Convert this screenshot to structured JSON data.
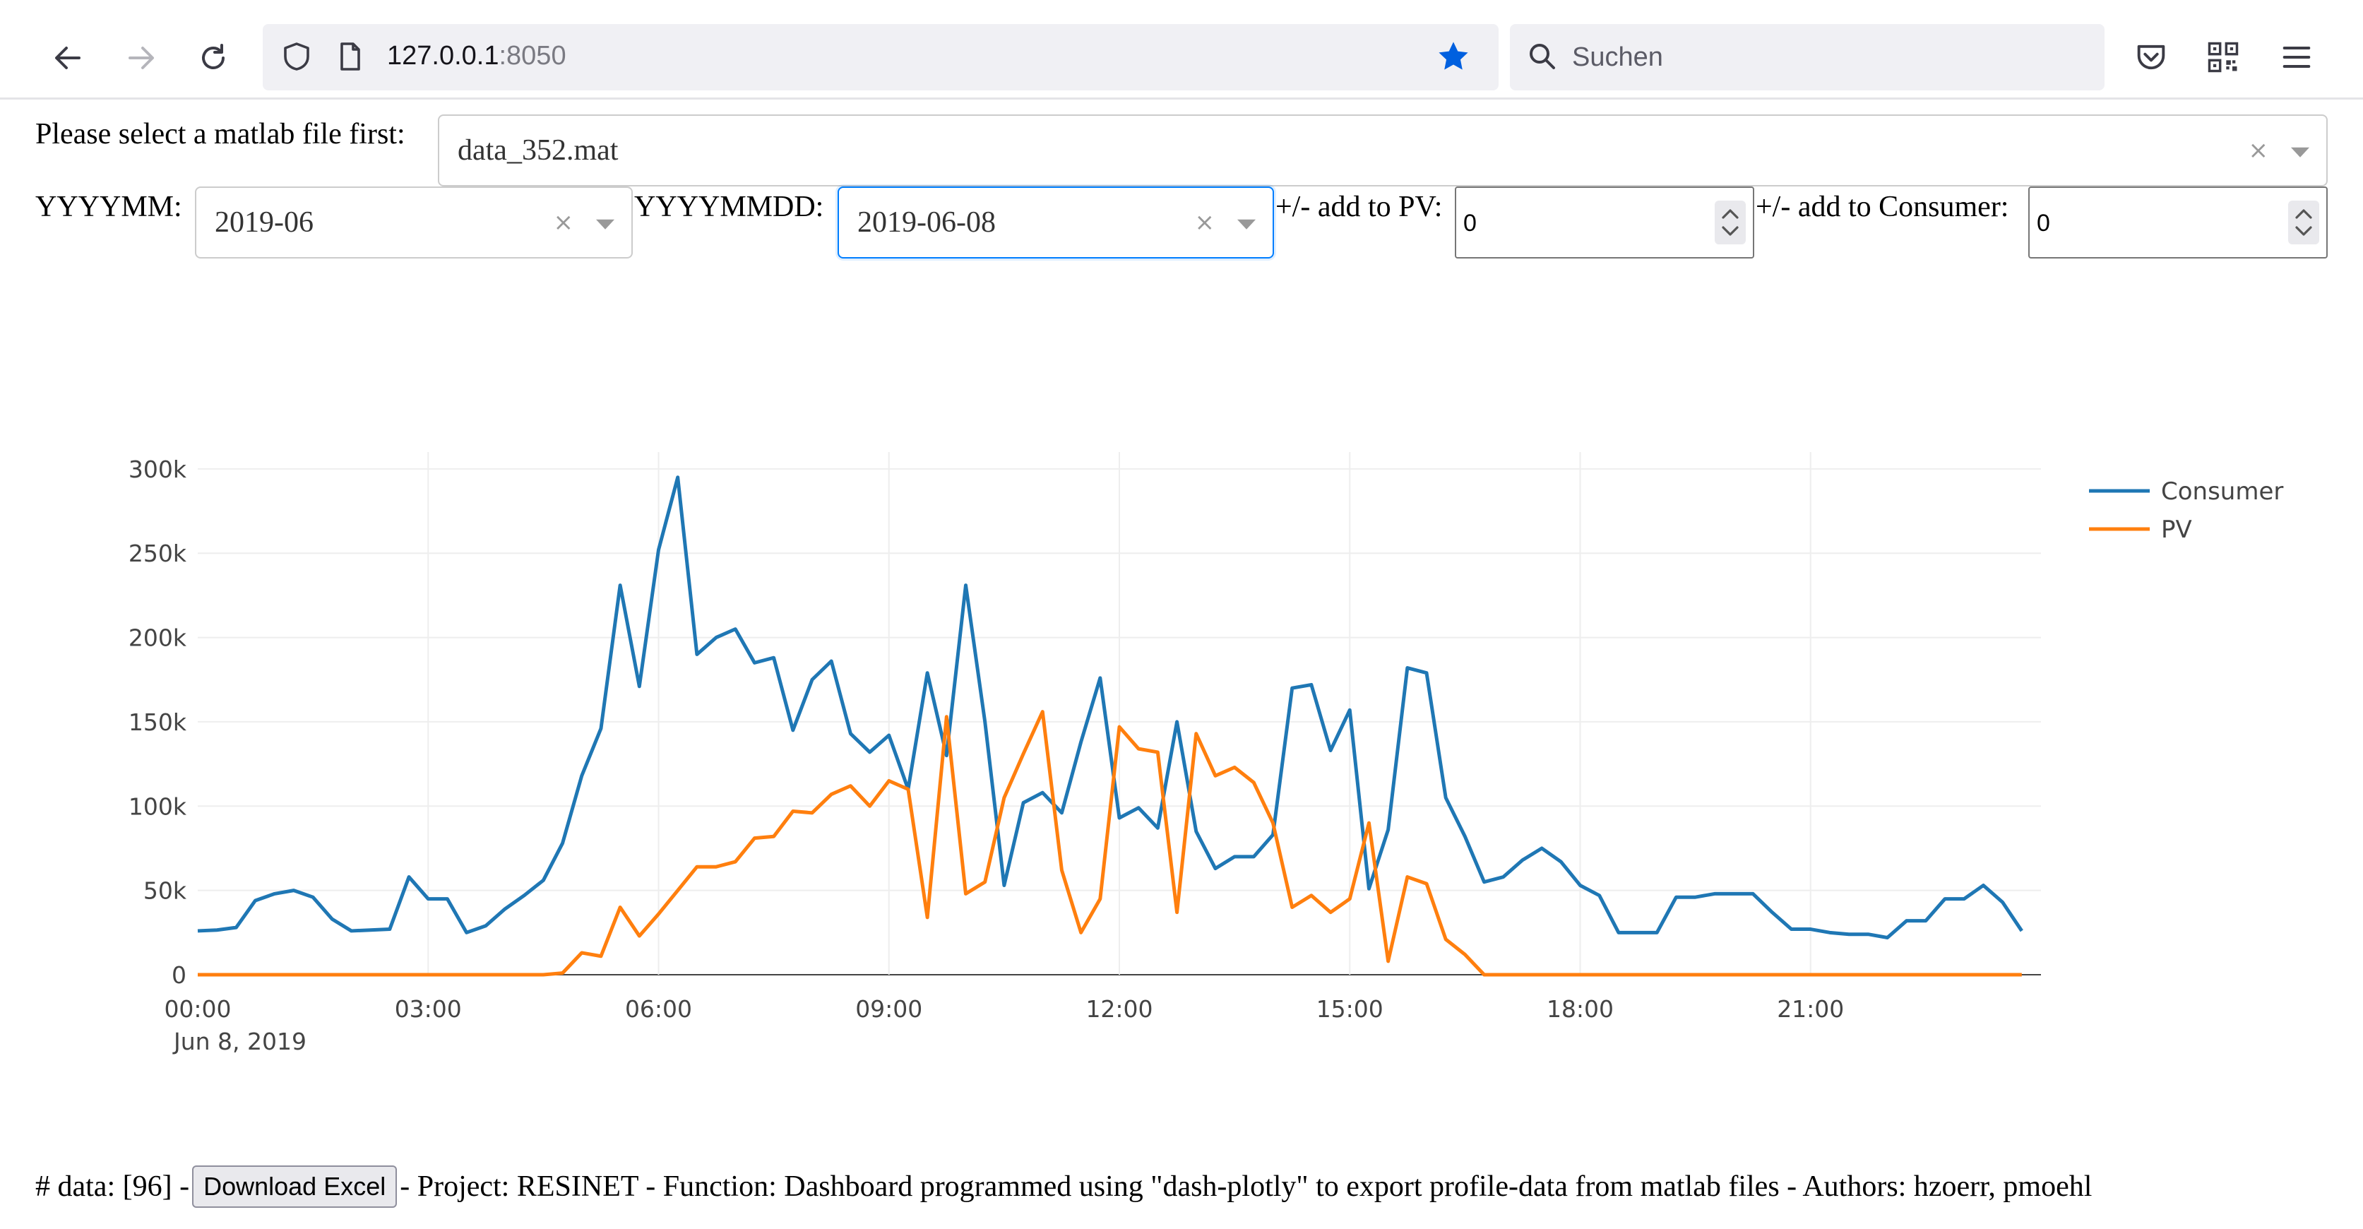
{
  "browser": {
    "url_host": "127.0.0.1",
    "url_port": ":8050",
    "search_placeholder": "Suchen",
    "colors": {
      "star": "#0060df",
      "icon": "#5b5b66"
    }
  },
  "controls": {
    "file_label": "Please select a matlab file first:",
    "file_value": "data_352.mat",
    "month_label": "YYYYMM:",
    "month_value": "2019-06",
    "day_label": "YYYYMMDD:",
    "day_value": "2019-06-08",
    "pv_label": "+/- add to PV:",
    "pv_value": "0",
    "consumer_label": "+/- add to Consumer:",
    "consumer_value": "0",
    "clear_symbol": "×"
  },
  "footer": {
    "prefix": "# data: [96] -",
    "button_label": "Download Excel",
    "suffix": "- Project: RESINET - Function: Dashboard programmed using \"dash-plotly\" to export profile-data from matlab files - Authors: hzoerr, pmoehl"
  },
  "chart_data": {
    "type": "line",
    "x_ticks": [
      "00:00",
      "03:00",
      "06:00",
      "09:00",
      "12:00",
      "15:00",
      "18:00",
      "21:00"
    ],
    "x_sub_label": "Jun 8, 2019",
    "x_unit": "hours",
    "x_start": 0,
    "x_step": 0.25,
    "y_ticks": [
      "0",
      "50k",
      "100k",
      "150k",
      "200k",
      "250k",
      "300k"
    ],
    "ylim": [
      0,
      310000
    ],
    "grid": true,
    "legend_position": "top-right",
    "series": [
      {
        "name": "Consumer",
        "color": "#1f77b4",
        "values": [
          26000,
          26500,
          28000,
          44000,
          48000,
          50000,
          46000,
          33000,
          26000,
          26500,
          27000,
          58000,
          45000,
          45000,
          25000,
          29000,
          39000,
          47000,
          56000,
          78000,
          118000,
          146000,
          231000,
          171000,
          252000,
          295000,
          190000,
          200000,
          205000,
          185000,
          188000,
          145000,
          175000,
          186000,
          143000,
          132000,
          142000,
          110000,
          179000,
          130000,
          231000,
          150000,
          53000,
          102000,
          108000,
          96000,
          138000,
          176000,
          93000,
          99000,
          87000,
          150000,
          85000,
          63000,
          70000,
          70000,
          83000,
          170000,
          172000,
          133000,
          157000,
          51000,
          86000,
          182000,
          179000,
          105000,
          82000,
          55000,
          58000,
          68000,
          75000,
          67000,
          53000,
          47000,
          25000,
          25000,
          25000,
          46000,
          46000,
          48000,
          48000,
          48000,
          37000,
          27000,
          27000,
          25000,
          24000,
          24000,
          22000,
          32000,
          32000,
          45000,
          45000,
          53000,
          43000,
          26000
        ]
      },
      {
        "name": "PV",
        "color": "#ff7f0e",
        "values": [
          0,
          0,
          0,
          0,
          0,
          0,
          0,
          0,
          0,
          0,
          0,
          0,
          0,
          0,
          0,
          0,
          0,
          0,
          0,
          1000,
          13000,
          11000,
          40000,
          23000,
          36000,
          50000,
          64000,
          64000,
          67000,
          81000,
          82000,
          97000,
          96000,
          107000,
          112000,
          100000,
          115000,
          110000,
          34000,
          153000,
          48000,
          55000,
          105000,
          131000,
          156000,
          62000,
          25000,
          45000,
          147000,
          134000,
          132000,
          37000,
          143000,
          118000,
          123000,
          114000,
          90000,
          40000,
          47000,
          37000,
          45000,
          90000,
          8000,
          58000,
          54000,
          21000,
          12000,
          0,
          0,
          0,
          0,
          0,
          0,
          0,
          0,
          0,
          0,
          0,
          0,
          0,
          0,
          0,
          0,
          0,
          0,
          0,
          0,
          0,
          0,
          0,
          0,
          0,
          0,
          0,
          0,
          0
        ]
      }
    ]
  }
}
